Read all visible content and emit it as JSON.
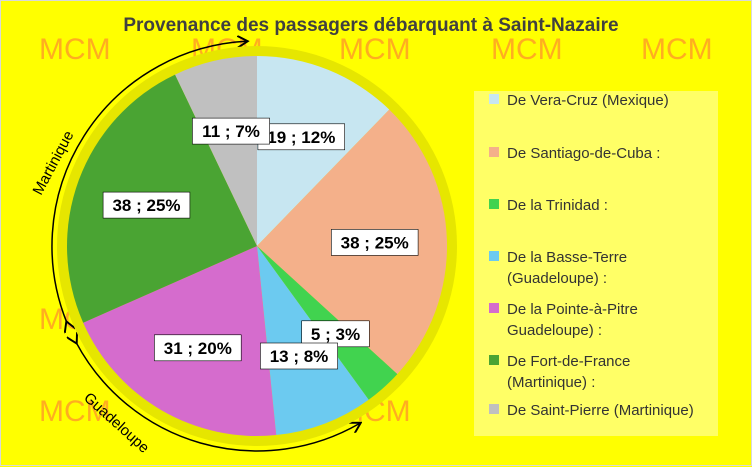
{
  "chart_data": {
    "type": "pie",
    "title": "Provenance des passagers débarquant  à Saint-Nazaire",
    "slices": [
      {
        "value": 19,
        "label": "19 ; 12%",
        "legend": [
          "De Vera-Cruz  (Mexique)"
        ],
        "color": "#c7e6f1"
      },
      {
        "value": 38,
        "label": "38 ; 25%",
        "legend": [
          "De Santiago-de-Cuba :"
        ],
        "color": "#f4b08a"
      },
      {
        "value": 5,
        "label": "5 ; 3%",
        "legend": [
          "De la Trinidad :"
        ],
        "color": "#41d34f"
      },
      {
        "value": 13,
        "label": "13 ; 8%",
        "legend": [
          "De la Basse-Terre",
          "(Guadeloupe) :"
        ],
        "color": "#6ccaf0"
      },
      {
        "value": 31,
        "label": "31 ; 20%",
        "legend": [
          "De la Pointe-à-Pitre",
          "Guadeloupe) :"
        ],
        "color": "#d56ccd"
      },
      {
        "value": 38,
        "label": "38 ; 25%",
        "legend": [
          "De Fort-de-France",
          "(Martinique) :"
        ],
        "color": "#4aa433"
      },
      {
        "value": 11,
        "label": "11 ; 7%",
        "legend": [
          "De Saint-Pierre (Martinique)"
        ],
        "color": "#c0c0c0"
      }
    ],
    "legend_position": "right",
    "annotations": [
      "Martinique",
      "Guadeloupe"
    ]
  },
  "watermark": "MCM",
  "colors": {
    "background": "#ffff00",
    "legend_background": "#ffff66",
    "pie_border": "#e6e600"
  }
}
